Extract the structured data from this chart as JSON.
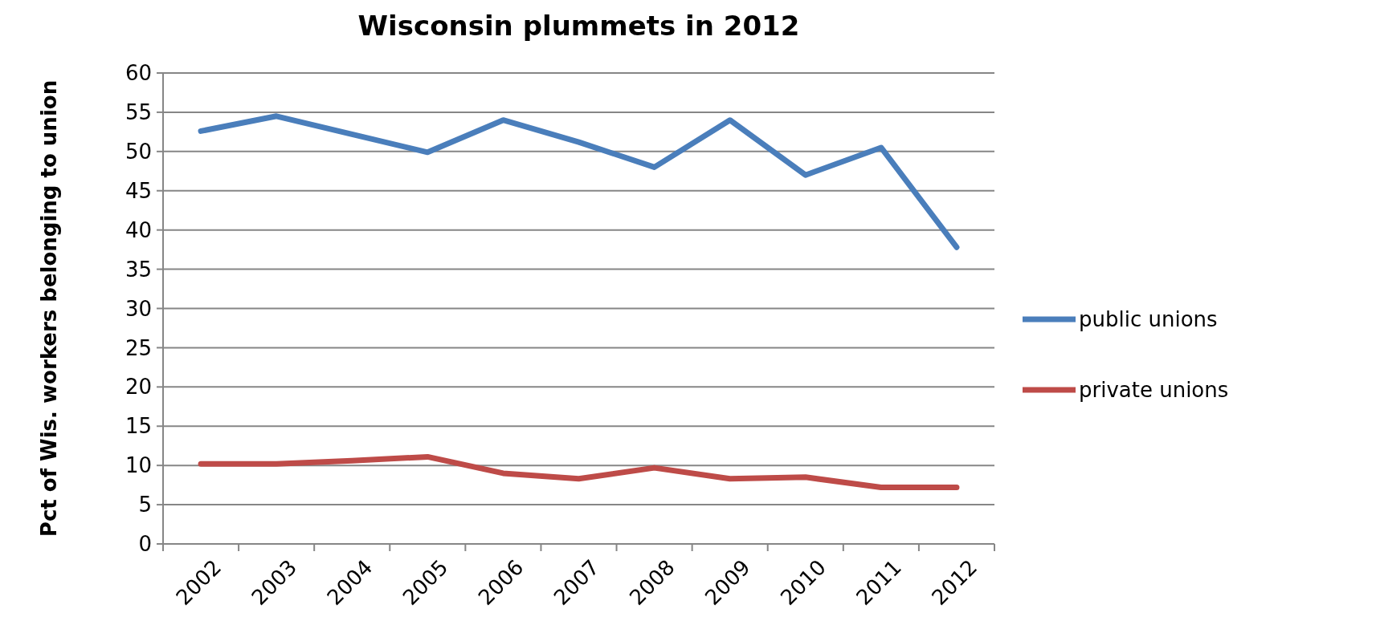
{
  "chart_data": {
    "type": "line",
    "title": "Wisconsin plummets in 2012",
    "ylabel": "Pct of Wis. workers belonging to union",
    "categories": [
      "2002",
      "2003",
      "2004",
      "2005",
      "2006",
      "2007",
      "2008",
      "2009",
      "2010",
      "2011",
      "2012"
    ],
    "series": [
      {
        "name": "public unions",
        "color": "#4a7ebb",
        "values": [
          52.6,
          54.5,
          52.2,
          49.9,
          54,
          51.2,
          48,
          54,
          47,
          50.5,
          37.8
        ]
      },
      {
        "name": "private unions",
        "color": "#be4b48",
        "values": [
          10.2,
          10.2,
          10.6,
          11.1,
          9,
          8.3,
          9.7,
          8.3,
          8.5,
          7.2,
          7.2
        ]
      }
    ],
    "ylim": [
      0,
      60
    ],
    "yticks": [
      0,
      5,
      10,
      15,
      20,
      25,
      30,
      35,
      40,
      45,
      50,
      55,
      60
    ],
    "grid": "y",
    "legend": "right",
    "marker": "none",
    "line_style": "solid"
  }
}
